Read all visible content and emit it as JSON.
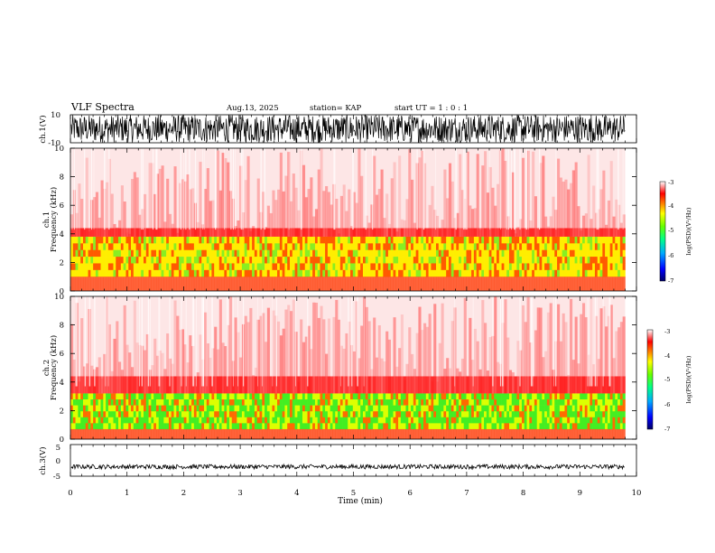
{
  "header": {
    "title": "VLF Spectra",
    "date": "Aug.13, 2025",
    "station": "station= KAP",
    "start": "start  UT =   1 : 0  : 1"
  },
  "chart_data": [
    {
      "type": "line",
      "name": "ch1-waveform",
      "ylabel": "ch.1(V)",
      "ylim": [
        -10,
        10
      ],
      "ytick_labels": [
        "10",
        "-10"
      ],
      "x_range_min": [
        0,
        9.8
      ],
      "amplitude_approx": [
        -10,
        10
      ]
    },
    {
      "type": "heatmap",
      "name": "ch1-spectrogram",
      "ylabel": "ch.1\nFrequency  (kHz)",
      "ylim": [
        0,
        10
      ],
      "ytick_labels": [
        "0",
        "2",
        "4",
        "6",
        "8",
        "10"
      ],
      "x_range_min": [
        0,
        9.8
      ],
      "strong_band_khz": [
        1.0,
        3.8
      ],
      "colorbar": {
        "label": "log(PSD)(V²/Hz)",
        "range": [
          -7,
          -3
        ],
        "ticks": [
          "-3",
          "-4",
          "-5",
          "-6",
          "-7"
        ]
      }
    },
    {
      "type": "heatmap",
      "name": "ch2-spectrogram",
      "ylabel": "ch.2\nFrequency  (kHz)",
      "ylim": [
        0,
        10
      ],
      "ytick_labels": [
        "0",
        "2",
        "4",
        "6",
        "8",
        "10"
      ],
      "x_range_min": [
        0,
        9.8
      ],
      "strong_band_khz": [
        0.7,
        3.2
      ],
      "colorbar": {
        "label": "log(PSD)(V²/Hz)",
        "range": [
          -7,
          -3
        ],
        "ticks": [
          "-3",
          "-4",
          "-5",
          "-6",
          "-7"
        ]
      }
    },
    {
      "type": "line",
      "name": "ch3-waveform",
      "ylabel": "ch.3(V)",
      "ylim": [
        -5,
        5
      ],
      "ytick_labels": [
        "5",
        "0",
        "-5"
      ],
      "x_range_min": [
        0,
        9.8
      ],
      "level_approx": -2
    }
  ],
  "xaxis": {
    "label": "Time  (min)",
    "range": [
      0,
      10
    ],
    "tick_labels": [
      "0",
      "1",
      "2",
      "3",
      "4",
      "5",
      "6",
      "7",
      "8",
      "9",
      "10"
    ]
  },
  "colors": {
    "waveform": "#000000",
    "spectro_low": "#ffffff",
    "spectro_mid": "#ff2020",
    "spectro_high": "#ffff00",
    "spectro_peak": "#33dd33"
  }
}
